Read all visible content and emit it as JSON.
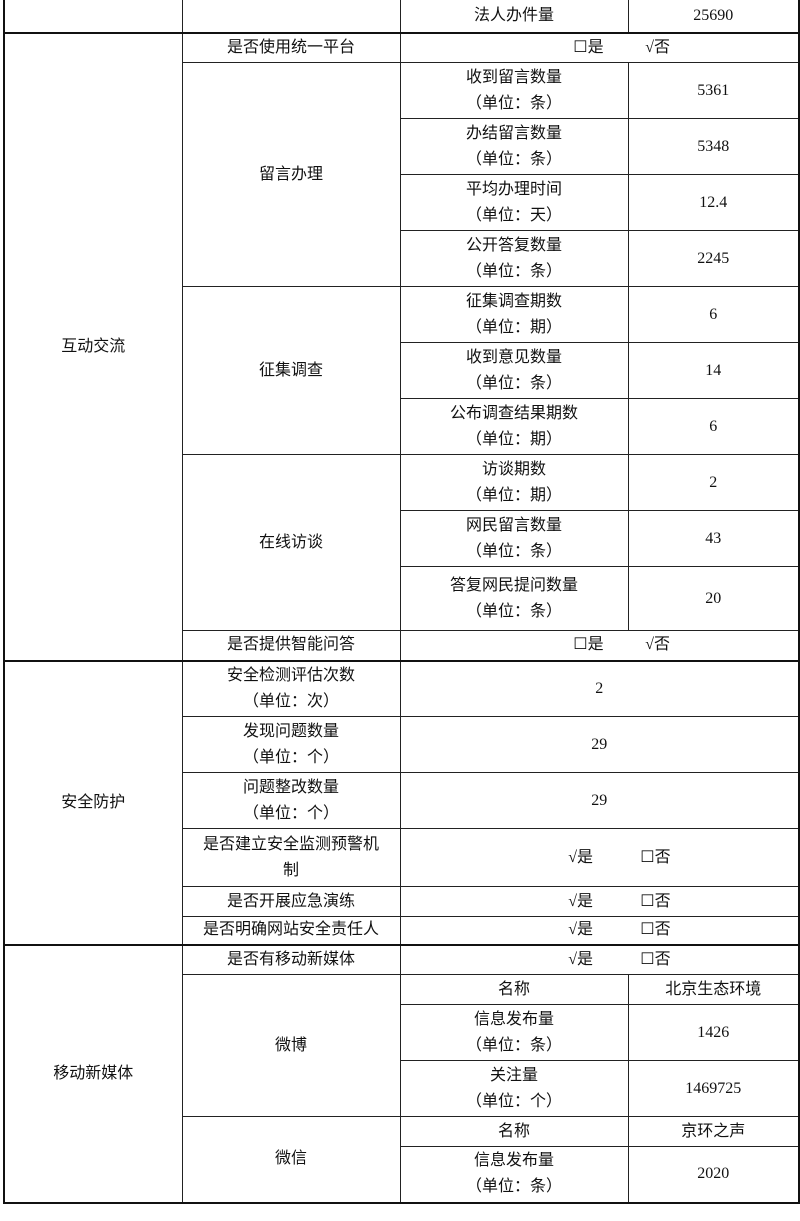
{
  "rows": {
    "legal_person_count": {
      "label": "法人办件量",
      "value": "25690"
    },
    "interaction": {
      "title": "互动交流",
      "unified_platform": {
        "label": "是否使用统一平台",
        "yes": "☐是",
        "no": "√否"
      },
      "messages": {
        "title": "留言办理",
        "items": [
          {
            "label": "收到留言数量",
            "unit": "（单位：条）",
            "value": "5361"
          },
          {
            "label": "办结留言数量",
            "unit": "（单位：条）",
            "value": "5348"
          },
          {
            "label": "平均办理时间",
            "unit": "（单位：天）",
            "value": "12.4"
          },
          {
            "label": "公开答复数量",
            "unit": "（单位：条）",
            "value": "2245"
          }
        ]
      },
      "survey": {
        "title": "征集调查",
        "items": [
          {
            "label": "征集调查期数",
            "unit": "（单位：期）",
            "value": "6"
          },
          {
            "label": "收到意见数量",
            "unit": "（单位：条）",
            "value": "14"
          },
          {
            "label": "公布调查结果期数",
            "unit": "（单位：期）",
            "value": "6"
          }
        ]
      },
      "interview": {
        "title": "在线访谈",
        "items": [
          {
            "label": "访谈期数",
            "unit": "（单位：期）",
            "value": "2"
          },
          {
            "label": "网民留言数量",
            "unit": "（单位：条）",
            "value": "43"
          },
          {
            "label": "答复网民提问数量",
            "unit": "（单位：条）",
            "value": "20"
          }
        ]
      },
      "smart_qa": {
        "label": "是否提供智能问答",
        "yes": "☐是",
        "no": "√否"
      }
    },
    "security": {
      "title": "安全防护",
      "items": [
        {
          "label": "安全检测评估次数",
          "unit": "（单位：次）",
          "value": "2"
        },
        {
          "label": "发现问题数量",
          "unit": "（单位：个）",
          "value": "29"
        },
        {
          "label": "问题整改数量",
          "unit": "（单位：个）",
          "value": "29"
        }
      ],
      "monitoring": {
        "label1": "是否建立安全监测预警机",
        "label2": "制",
        "yes": "√是",
        "no": "☐否"
      },
      "drill": {
        "label": "是否开展应急演练",
        "yes": "√是",
        "no": "☐否"
      },
      "responsible": {
        "label": "是否明确网站安全责任人",
        "yes": "√是",
        "no": "☐否"
      }
    },
    "media": {
      "title": "移动新媒体",
      "has_media": {
        "label": "是否有移动新媒体",
        "yes": "√是",
        "no": "☐否"
      },
      "weibo": {
        "title": "微博",
        "name_label": "名称",
        "name": "北京生态环境",
        "posts": {
          "label": "信息发布量",
          "unit": "（单位：条）",
          "value": "1426"
        },
        "followers": {
          "label": "关注量",
          "unit": "（单位：个）",
          "value": "1469725"
        }
      },
      "wechat": {
        "title": "微信",
        "name_label": "名称",
        "name": "京环之声",
        "posts": {
          "label": "信息发布量",
          "unit": "（单位：条）",
          "value": "2020"
        }
      }
    }
  }
}
